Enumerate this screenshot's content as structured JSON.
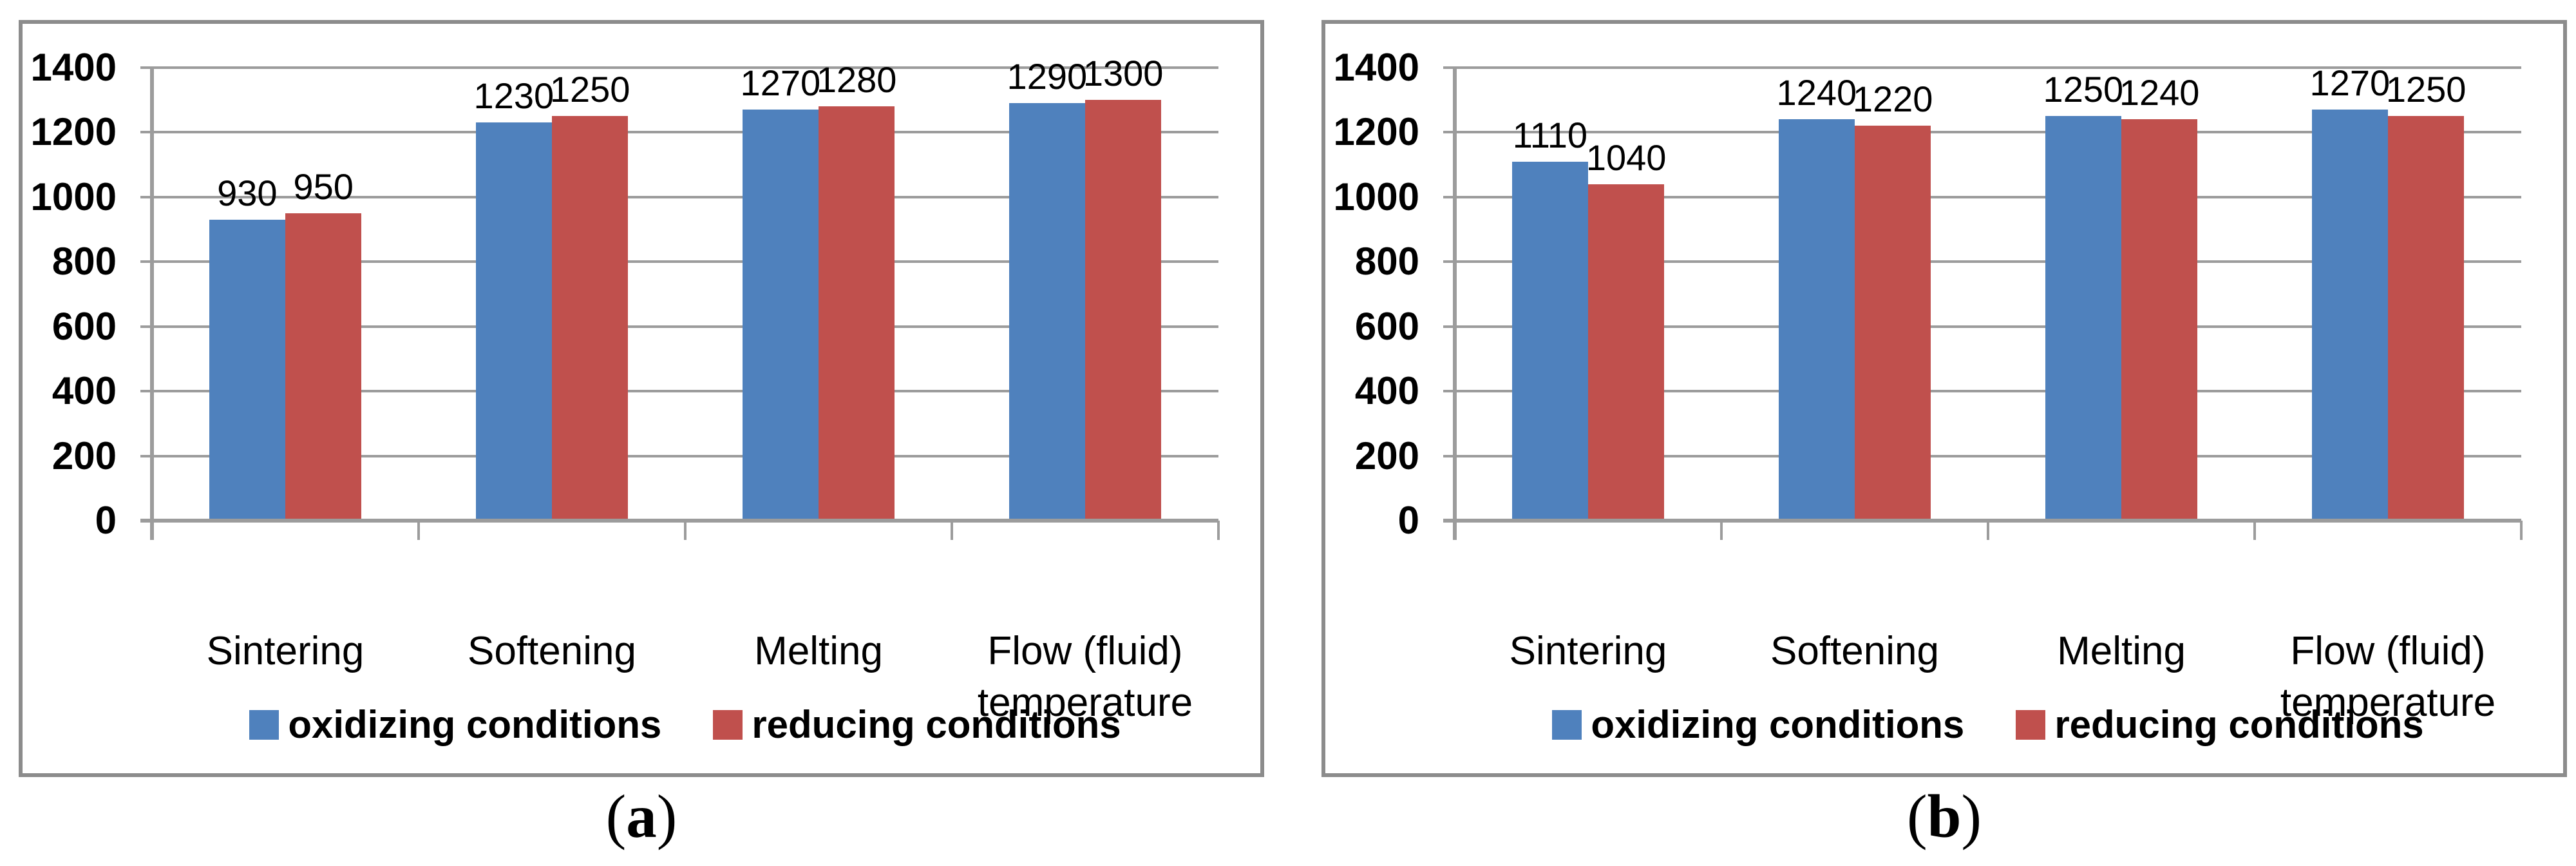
{
  "colors": {
    "background": "#FFFFFF",
    "panel_border": "#8C8C8C",
    "gridline": "#9C9C9C",
    "axis": "#9C9C9C",
    "text": "#000000",
    "series_blue": "#4F81BD",
    "series_red": "#C0504D"
  },
  "captions": [
    {
      "open": "(",
      "letter": "a",
      "close": ")"
    },
    {
      "open": "(",
      "letter": "b",
      "close": ")"
    }
  ],
  "chart_data": [
    {
      "type": "bar",
      "panel": "a",
      "title": "",
      "xlabel": "",
      "ylabel": "",
      "categories": [
        "Sintering",
        "Softening",
        "Melting",
        "Flow (fluid) temperature"
      ],
      "series": [
        {
          "name": "oxidizing conditions",
          "color": "#4F81BD",
          "values": [
            930,
            1230,
            1270,
            1290
          ]
        },
        {
          "name": "reducing conditions",
          "color": "#C0504D",
          "values": [
            950,
            1250,
            1280,
            1300
          ]
        }
      ],
      "ylim": [
        0,
        1400
      ],
      "yticks": [
        0,
        200,
        400,
        600,
        800,
        1000,
        1200,
        1400
      ],
      "grid": true,
      "data_labels": true,
      "legend_position": "bottom"
    },
    {
      "type": "bar",
      "panel": "b",
      "title": "",
      "xlabel": "",
      "ylabel": "",
      "categories": [
        "Sintering",
        "Softening",
        "Melting",
        "Flow (fluid) temperature"
      ],
      "series": [
        {
          "name": "oxidizing conditions",
          "color": "#4F81BD",
          "values": [
            1110,
            1240,
            1250,
            1270
          ]
        },
        {
          "name": "reducing conditions",
          "color": "#C0504D",
          "values": [
            1040,
            1220,
            1240,
            1250
          ]
        }
      ],
      "ylim": [
        0,
        1400
      ],
      "yticks": [
        0,
        200,
        400,
        600,
        800,
        1000,
        1200,
        1400
      ],
      "grid": true,
      "data_labels": true,
      "legend_position": "bottom"
    }
  ]
}
